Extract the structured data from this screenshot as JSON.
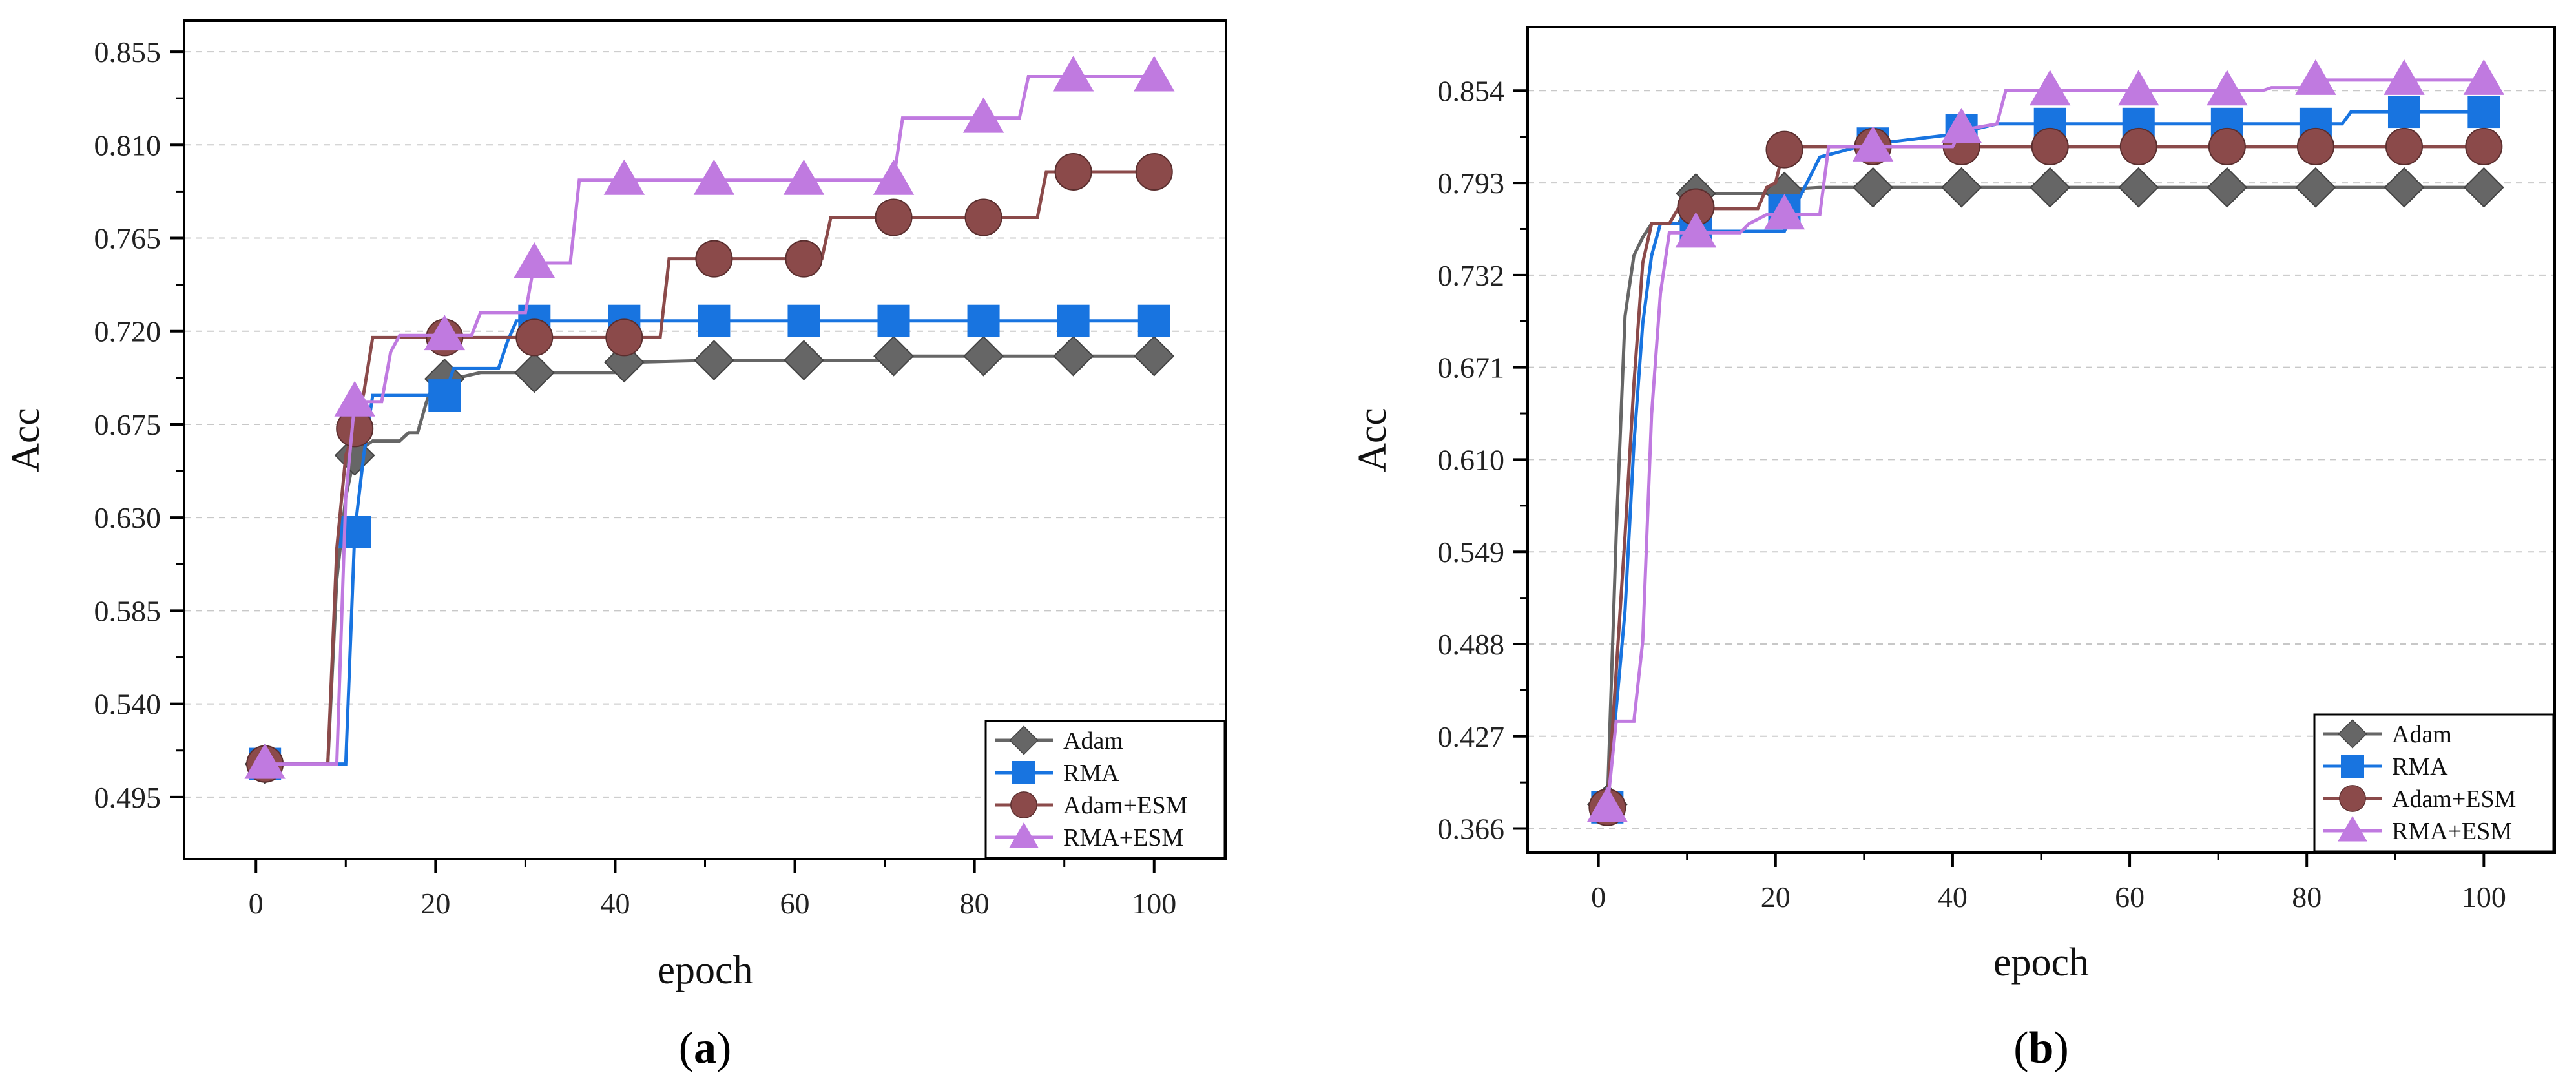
{
  "chart_data": [
    {
      "type": "line",
      "panel_label": "a",
      "xlabel": "epoch",
      "ylabel": "Acc",
      "xlim": [
        -8,
        108
      ],
      "ylim": [
        0.465,
        0.87
      ],
      "xticks": [
        0,
        20,
        40,
        60,
        80,
        100
      ],
      "yticks": [
        0.495,
        0.54,
        0.585,
        0.63,
        0.675,
        0.72,
        0.765,
        0.81,
        0.855
      ],
      "ytick_labels": [
        "0.495",
        "0.540",
        "0.585",
        "0.630",
        "0.675",
        "0.720",
        "0.765",
        "0.810",
        "0.855"
      ],
      "grid": "horizontal dashed",
      "legend_position": "lower-right",
      "series": [
        {
          "name": "Adam",
          "color": "#666666",
          "marker": "diamond",
          "line": [
            [
              1,
              0.511
            ],
            [
              8,
              0.511
            ],
            [
              9,
              0.6
            ],
            [
              10,
              0.64
            ],
            [
              11,
              0.66
            ],
            [
              12,
              0.664
            ],
            [
              13,
              0.667
            ],
            [
              16,
              0.667
            ],
            [
              17,
              0.671
            ],
            [
              18,
              0.671
            ],
            [
              19,
              0.686
            ],
            [
              20,
              0.697
            ],
            [
              23,
              0.698
            ],
            [
              25,
              0.7
            ],
            [
              41,
              0.7
            ],
            [
              42,
              0.705
            ],
            [
              51,
              0.706
            ],
            [
              70,
              0.706
            ],
            [
              71,
              0.708
            ],
            [
              100,
              0.708
            ]
          ],
          "markers": [
            [
              1,
              0.511
            ],
            [
              11,
              0.66
            ],
            [
              21,
              0.697
            ],
            [
              31,
              0.7
            ],
            [
              41,
              0.705
            ],
            [
              51,
              0.706
            ],
            [
              61,
              0.706
            ],
            [
              71,
              0.708
            ],
            [
              81,
              0.708
            ],
            [
              91,
              0.708
            ],
            [
              100,
              0.708
            ]
          ]
        },
        {
          "name": "RMA",
          "color": "#1874e0",
          "marker": "square",
          "line": [
            [
              1,
              0.511
            ],
            [
              10,
              0.511
            ],
            [
              11,
              0.623
            ],
            [
              12,
              0.66
            ],
            [
              13,
              0.689
            ],
            [
              21,
              0.689
            ],
            [
              22,
              0.702
            ],
            [
              27,
              0.702
            ],
            [
              28,
              0.715
            ],
            [
              29,
              0.725
            ],
            [
              100,
              0.725
            ]
          ],
          "markers": [
            [
              1,
              0.511
            ],
            [
              11,
              0.623
            ],
            [
              21,
              0.689
            ],
            [
              31,
              0.725
            ],
            [
              41,
              0.725
            ],
            [
              51,
              0.725
            ],
            [
              61,
              0.725
            ],
            [
              71,
              0.725
            ],
            [
              81,
              0.725
            ],
            [
              91,
              0.725
            ],
            [
              100,
              0.725
            ]
          ]
        },
        {
          "name": "Adam+ESM",
          "color": "#8b4a4a",
          "marker": "circle",
          "line": [
            [
              1,
              0.511
            ],
            [
              8,
              0.511
            ],
            [
              9,
              0.615
            ],
            [
              10,
              0.66
            ],
            [
              11,
              0.673
            ],
            [
              12,
              0.69
            ],
            [
              13,
              0.717
            ],
            [
              45,
              0.717
            ],
            [
              46,
              0.755
            ],
            [
              63,
              0.755
            ],
            [
              64,
              0.775
            ],
            [
              87,
              0.775
            ],
            [
              88,
              0.797
            ],
            [
              100,
              0.797
            ]
          ],
          "markers": [
            [
              1,
              0.511
            ],
            [
              11,
              0.673
            ],
            [
              21,
              0.717
            ],
            [
              31,
              0.717
            ],
            [
              41,
              0.717
            ],
            [
              51,
              0.755
            ],
            [
              61,
              0.755
            ],
            [
              71,
              0.775
            ],
            [
              81,
              0.775
            ],
            [
              91,
              0.797
            ],
            [
              100,
              0.797
            ]
          ]
        },
        {
          "name": "RMA+ESM",
          "color": "#c07ae0",
          "marker": "triangle",
          "line": [
            [
              1,
              0.511
            ],
            [
              9,
              0.511
            ],
            [
              10,
              0.64
            ],
            [
              11,
              0.686
            ],
            [
              14,
              0.686
            ],
            [
              15,
              0.71
            ],
            [
              16,
              0.718
            ],
            [
              24,
              0.718
            ],
            [
              25,
              0.729
            ],
            [
              30,
              0.729
            ],
            [
              31,
              0.753
            ],
            [
              35,
              0.753
            ],
            [
              36,
              0.793
            ],
            [
              71,
              0.793
            ],
            [
              72,
              0.823
            ],
            [
              85,
              0.823
            ],
            [
              86,
              0.843
            ],
            [
              100,
              0.843
            ]
          ],
          "markers": [
            [
              1,
              0.511
            ],
            [
              11,
              0.686
            ],
            [
              21,
              0.718
            ],
            [
              31,
              0.753
            ],
            [
              41,
              0.793
            ],
            [
              51,
              0.793
            ],
            [
              61,
              0.793
            ],
            [
              71,
              0.793
            ],
            [
              81,
              0.823
            ],
            [
              91,
              0.843
            ],
            [
              100,
              0.843
            ]
          ]
        }
      ]
    },
    {
      "type": "line",
      "panel_label": "b",
      "xlabel": "epoch",
      "ylabel": "Acc",
      "xlim": [
        -8,
        108
      ],
      "ylim": [
        0.35,
        0.896
      ],
      "xticks": [
        0,
        20,
        40,
        60,
        80,
        100
      ],
      "yticks": [
        0.366,
        0.427,
        0.488,
        0.549,
        0.61,
        0.671,
        0.732,
        0.793,
        0.854
      ],
      "ytick_labels": [
        "0.366",
        "0.427",
        "0.488",
        "0.549",
        "0.610",
        "0.671",
        "0.732",
        "0.793",
        "0.854"
      ],
      "grid": "horizontal dashed",
      "legend_position": "lower-right",
      "series": [
        {
          "name": "Adam",
          "color": "#666666",
          "marker": "diamond",
          "line": [
            [
              1,
              0.382
            ],
            [
              2,
              0.56
            ],
            [
              3,
              0.705
            ],
            [
              4,
              0.745
            ],
            [
              5,
              0.757
            ],
            [
              6,
              0.766
            ],
            [
              9,
              0.766
            ],
            [
              10,
              0.775
            ],
            [
              11,
              0.786
            ],
            [
              21,
              0.786
            ],
            [
              22,
              0.789
            ],
            [
              25,
              0.79
            ],
            [
              100,
              0.79
            ]
          ],
          "markers": [
            [
              1,
              0.382
            ],
            [
              11,
              0.786
            ],
            [
              21,
              0.787
            ],
            [
              31,
              0.79
            ],
            [
              41,
              0.79
            ],
            [
              51,
              0.79
            ],
            [
              61,
              0.79
            ],
            [
              71,
              0.79
            ],
            [
              81,
              0.79
            ],
            [
              91,
              0.79
            ],
            [
              100,
              0.79
            ]
          ]
        },
        {
          "name": "RMA",
          "color": "#1874e0",
          "marker": "square",
          "line": [
            [
              1,
              0.38
            ],
            [
              3,
              0.51
            ],
            [
              4,
              0.62
            ],
            [
              5,
              0.7
            ],
            [
              6,
              0.745
            ],
            [
              7,
              0.766
            ],
            [
              11,
              0.766
            ],
            [
              12,
              0.761
            ],
            [
              21,
              0.761
            ],
            [
              22,
              0.775
            ],
            [
              25,
              0.81
            ],
            [
              30,
              0.818
            ],
            [
              40,
              0.825
            ],
            [
              45,
              0.832
            ],
            [
              84,
              0.832
            ],
            [
              85,
              0.84
            ],
            [
              100,
              0.84
            ]
          ],
          "markers": [
            [
              1,
              0.38
            ],
            [
              11,
              0.761
            ],
            [
              21,
              0.775
            ],
            [
              31,
              0.819
            ],
            [
              41,
              0.828
            ],
            [
              51,
              0.832
            ],
            [
              61,
              0.832
            ],
            [
              71,
              0.832
            ],
            [
              81,
              0.832
            ],
            [
              91,
              0.84
            ],
            [
              100,
              0.84
            ]
          ]
        },
        {
          "name": "Adam+ESM",
          "color": "#8b4a4a",
          "marker": "circle",
          "line": [
            [
              1,
              0.38
            ],
            [
              3,
              0.56
            ],
            [
              4,
              0.66
            ],
            [
              5,
              0.74
            ],
            [
              6,
              0.766
            ],
            [
              8,
              0.766
            ],
            [
              9,
              0.776
            ],
            [
              18,
              0.776
            ],
            [
              19,
              0.79
            ],
            [
              20,
              0.793
            ],
            [
              21,
              0.817
            ],
            [
              100,
              0.817
            ]
          ],
          "markers": [
            [
              1,
              0.38
            ],
            [
              11,
              0.777
            ],
            [
              21,
              0.815
            ],
            [
              31,
              0.817
            ],
            [
              41,
              0.817
            ],
            [
              51,
              0.817
            ],
            [
              61,
              0.817
            ],
            [
              71,
              0.817
            ],
            [
              81,
              0.817
            ],
            [
              91,
              0.817
            ],
            [
              100,
              0.817
            ]
          ]
        },
        {
          "name": "RMA+ESM",
          "color": "#c07ae0",
          "marker": "triangle",
          "line": [
            [
              1,
              0.38
            ],
            [
              2,
              0.437
            ],
            [
              4,
              0.437
            ],
            [
              5,
              0.49
            ],
            [
              6,
              0.64
            ],
            [
              7,
              0.72
            ],
            [
              8,
              0.76
            ],
            [
              16,
              0.76
            ],
            [
              17,
              0.766
            ],
            [
              19,
              0.772
            ],
            [
              25,
              0.772
            ],
            [
              26,
              0.817
            ],
            [
              40,
              0.817
            ],
            [
              41,
              0.828
            ],
            [
              45,
              0.832
            ],
            [
              46,
              0.854
            ],
            [
              75,
              0.854
            ],
            [
              76,
              0.856
            ],
            [
              80,
              0.856
            ],
            [
              81,
              0.861
            ],
            [
              100,
              0.861
            ]
          ],
          "markers": [
            [
              1,
              0.38
            ],
            [
              11,
              0.76
            ],
            [
              21,
              0.772
            ],
            [
              31,
              0.817
            ],
            [
              41,
              0.829
            ],
            [
              51,
              0.854
            ],
            [
              61,
              0.854
            ],
            [
              71,
              0.854
            ],
            [
              81,
              0.861
            ],
            [
              91,
              0.861
            ],
            [
              100,
              0.861
            ]
          ]
        }
      ]
    }
  ]
}
